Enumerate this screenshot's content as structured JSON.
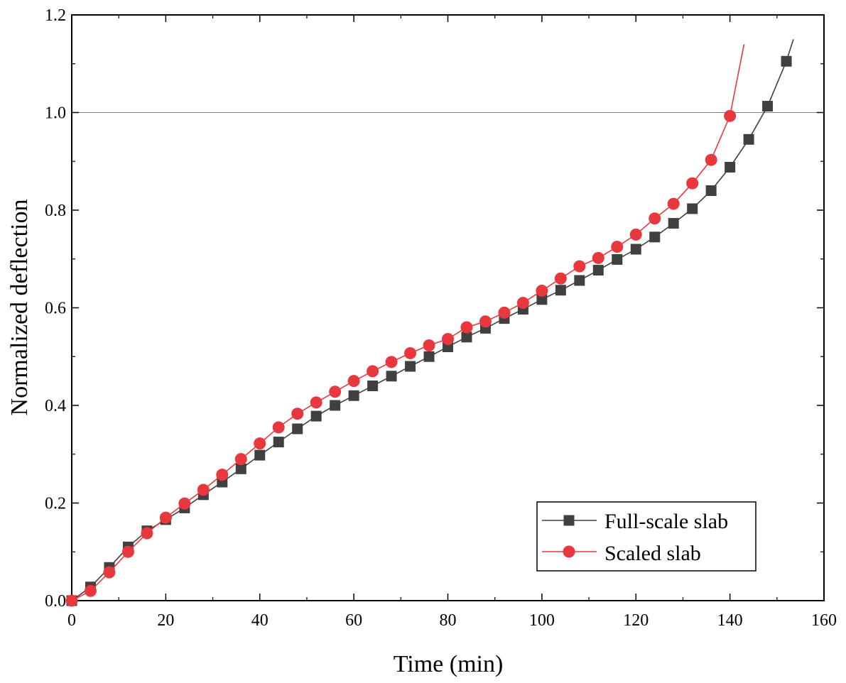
{
  "chart_data": {
    "type": "line",
    "title": "",
    "xlabel": "Time (min)",
    "ylabel": "Normalized deflection",
    "xlim": [
      0,
      160
    ],
    "ylim": [
      0,
      1.2
    ],
    "xticks": [
      0,
      20,
      40,
      60,
      80,
      100,
      120,
      140,
      160
    ],
    "yticks": [
      0.0,
      0.2,
      0.4,
      0.6,
      0.8,
      1.0,
      1.2
    ],
    "xtick_labels": [
      "0",
      "20",
      "40",
      "60",
      "80",
      "100",
      "120",
      "140",
      "160"
    ],
    "ytick_labels": [
      "0.0",
      "0.2",
      "0.4",
      "0.6",
      "0.8",
      "1.0",
      "1.2"
    ],
    "reference_line": {
      "y": 1.0,
      "color": "#808080"
    },
    "grid": false,
    "legend_position": "bottom-right",
    "series": [
      {
        "name": "Full-scale slab",
        "color": "#404040",
        "marker": "square",
        "x": [
          0,
          4,
          8,
          12,
          16,
          20,
          24,
          28,
          32,
          36,
          40,
          44,
          48,
          52,
          56,
          60,
          64,
          68,
          72,
          76,
          80,
          84,
          88,
          92,
          96,
          100,
          104,
          108,
          112,
          116,
          120,
          124,
          128,
          132,
          136,
          140,
          144,
          148,
          152
        ],
        "y": [
          0.0,
          0.028,
          0.068,
          0.11,
          0.143,
          0.166,
          0.19,
          0.217,
          0.243,
          0.27,
          0.298,
          0.325,
          0.352,
          0.378,
          0.4,
          0.42,
          0.44,
          0.46,
          0.48,
          0.5,
          0.52,
          0.54,
          0.558,
          0.578,
          0.597,
          0.617,
          0.636,
          0.656,
          0.677,
          0.699,
          0.72,
          0.745,
          0.773,
          0.803,
          0.84,
          0.888,
          0.945,
          1.013,
          1.105
        ],
        "curve_end": [
          153.5,
          1.15
        ]
      },
      {
        "name": "Scaled slab",
        "color": "#e8383d",
        "marker": "circle",
        "x": [
          0,
          4,
          8,
          12,
          16,
          20,
          24,
          28,
          32,
          36,
          40,
          44,
          48,
          52,
          56,
          60,
          64,
          68,
          72,
          76,
          80,
          84,
          88,
          92,
          96,
          100,
          104,
          108,
          112,
          116,
          120,
          124,
          128,
          132,
          136,
          140
        ],
        "y": [
          0.0,
          0.02,
          0.058,
          0.1,
          0.138,
          0.17,
          0.199,
          0.227,
          0.258,
          0.29,
          0.322,
          0.355,
          0.383,
          0.406,
          0.428,
          0.45,
          0.47,
          0.489,
          0.507,
          0.523,
          0.536,
          0.56,
          0.572,
          0.59,
          0.61,
          0.635,
          0.66,
          0.685,
          0.702,
          0.725,
          0.75,
          0.783,
          0.813,
          0.855,
          0.903,
          0.993
        ],
        "curve_end": [
          143,
          1.14
        ]
      }
    ]
  }
}
